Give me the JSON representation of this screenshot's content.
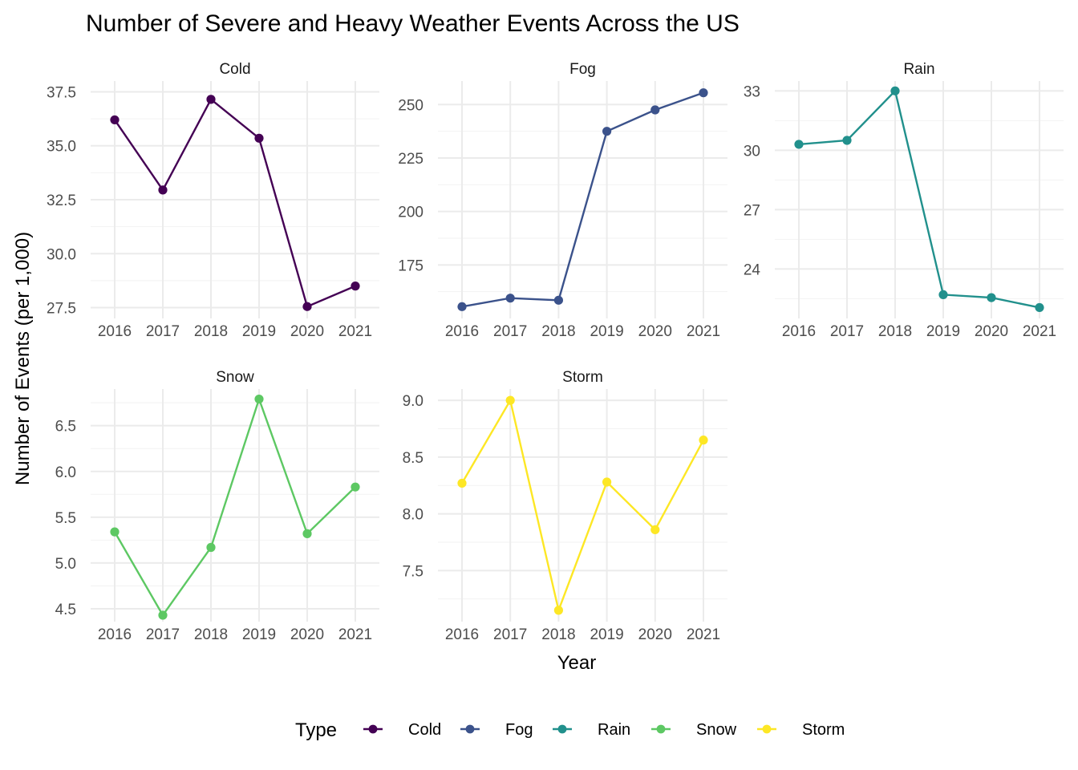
{
  "chart_data": {
    "type": "line",
    "title": "Number of Severe and Heavy Weather Events Across the US",
    "xlabel": "Year",
    "ylabel": "Number of Events (per 1,000)",
    "x": [
      2016,
      2017,
      2018,
      2019,
      2020,
      2021
    ],
    "grid": true,
    "facets": "free y scales",
    "legend": {
      "title": "Type",
      "position": "bottom",
      "entries": [
        "Cold",
        "Fog",
        "Rain",
        "Snow",
        "Storm"
      ]
    },
    "series": [
      {
        "name": "Cold",
        "color": "#440154",
        "values": [
          36.2,
          32.95,
          37.15,
          35.35,
          27.55,
          28.5
        ],
        "ylim": [
          27.0,
          38.0
        ],
        "yticks": [
          27.5,
          30.0,
          32.5,
          35.0,
          37.5
        ],
        "tick_labels": [
          "27.5",
          "30.0",
          "32.5",
          "35.0",
          "37.5"
        ]
      },
      {
        "name": "Fog",
        "color": "#3B528B",
        "values": [
          155.5,
          159.5,
          158.5,
          237.5,
          247.5,
          255.5
        ],
        "ylim": [
          150,
          261
        ],
        "yticks": [
          175,
          200,
          225,
          250
        ],
        "tick_labels": [
          "175",
          "200",
          "225",
          "250"
        ]
      },
      {
        "name": "Rain",
        "color": "#21908C",
        "values": [
          30.3,
          30.5,
          33.0,
          22.7,
          22.55,
          22.05
        ],
        "ylim": [
          21.5,
          33.5
        ],
        "yticks": [
          24,
          27,
          30,
          33
        ],
        "tick_labels": [
          "24",
          "27",
          "30",
          "33"
        ]
      },
      {
        "name": "Snow",
        "color": "#5DC863",
        "values": [
          5.34,
          4.43,
          5.17,
          6.79,
          5.32,
          5.83
        ],
        "ylim": [
          4.36,
          6.9
        ],
        "yticks": [
          4.5,
          5.0,
          5.5,
          6.0,
          6.5
        ],
        "tick_labels": [
          "4.5",
          "5.0",
          "5.5",
          "6.0",
          "6.5"
        ]
      },
      {
        "name": "Storm",
        "color": "#FDE725",
        "values": [
          8.27,
          9.0,
          7.15,
          8.28,
          7.86,
          8.65
        ],
        "ylim": [
          7.05,
          9.1
        ],
        "yticks": [
          7.5,
          8.0,
          8.5,
          9.0
        ],
        "tick_labels": [
          "7.5",
          "8.0",
          "8.5",
          "9.0"
        ]
      }
    ]
  }
}
